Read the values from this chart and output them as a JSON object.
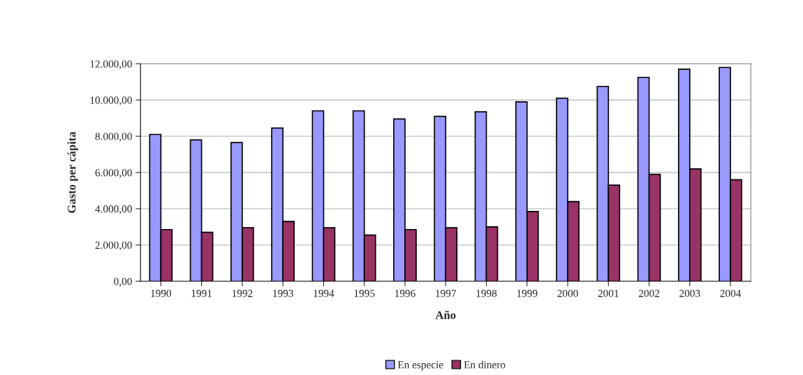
{
  "chart_data": {
    "type": "bar",
    "xlabel": "Año",
    "ylabel": "Gasto per cápita",
    "categories": [
      "1990",
      "1991",
      "1992",
      "1993",
      "1994",
      "1995",
      "1996",
      "1997",
      "1998",
      "1999",
      "2000",
      "2001",
      "2002",
      "2003",
      "2004"
    ],
    "series": [
      {
        "name": "En especie",
        "color": "#9999ff",
        "values": [
          8100,
          7800,
          7650,
          8450,
          9400,
          9400,
          8950,
          9100,
          9350,
          9900,
          10100,
          10750,
          11250,
          11700,
          11800
        ]
      },
      {
        "name": "En dinero",
        "color": "#993366",
        "values": [
          2850,
          2700,
          2950,
          3300,
          2950,
          2550,
          2850,
          2950,
          3000,
          3850,
          4400,
          5300,
          5900,
          6200,
          5600
        ]
      }
    ],
    "ylim": [
      0,
      12000
    ],
    "yticks": [
      {
        "value": 0,
        "label": "0,00"
      },
      {
        "value": 2000,
        "label": "2.000,00"
      },
      {
        "value": 4000,
        "label": "4.000,00"
      },
      {
        "value": 6000,
        "label": "6.000,00"
      },
      {
        "value": 8000,
        "label": "8.000,00"
      },
      {
        "value": 10000,
        "label": "10.000,00"
      },
      {
        "value": 12000,
        "label": "12.000,00"
      }
    ],
    "grid": "y",
    "legend": "bottom"
  }
}
